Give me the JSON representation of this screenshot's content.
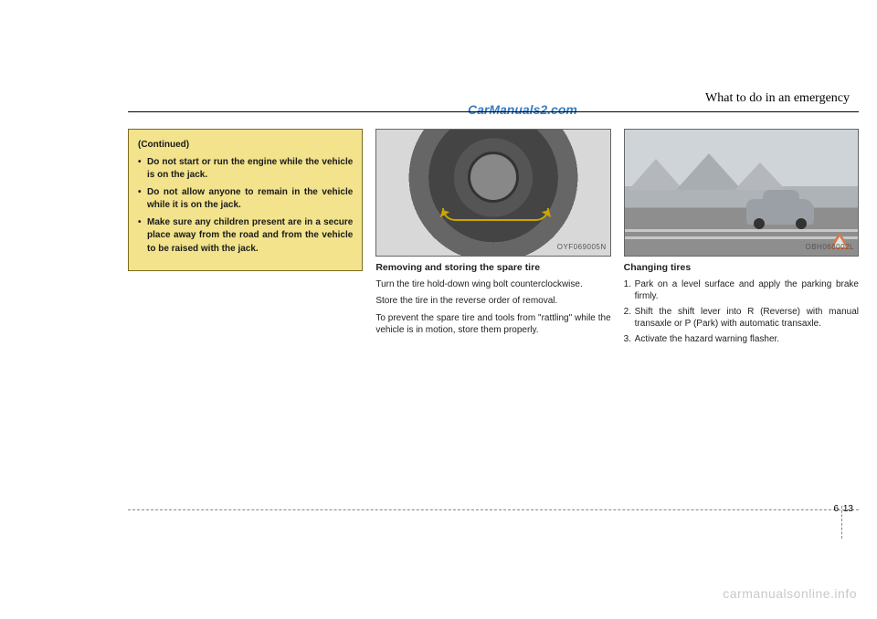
{
  "watermark_top": "CarManuals2.com",
  "section_title": "What to do in an emergency",
  "warning": {
    "continued": "(Continued)",
    "items": [
      "Do not start or run the engine while the vehicle is on the jack.",
      "Do not allow anyone to remain in the vehicle while it is on the jack.",
      "Make sure any children present are in a secure place away from the road and from the vehicle to be raised with the jack."
    ]
  },
  "col2": {
    "fig_label": "OYF069005N",
    "heading": "Removing and storing the spare tire",
    "p1": "Turn the tire hold-down wing bolt counterclockwise.",
    "p2": "Store the tire in the reverse order of removal.",
    "p3": "To prevent the spare tire and tools from \"rattling\" while the vehicle is in motion, store them properly."
  },
  "col3": {
    "fig_label": "OBH068002L",
    "heading": "Changing tires",
    "items": [
      "Park on a level surface and apply the parking brake firmly.",
      "Shift the shift lever into R (Reverse) with manual transaxle or P (Park) with automatic transaxle.",
      "Activate the hazard warning flasher."
    ]
  },
  "page_num_left": "6",
  "page_num_right": "13",
  "watermark_bottom": "carmanualsonline.info"
}
